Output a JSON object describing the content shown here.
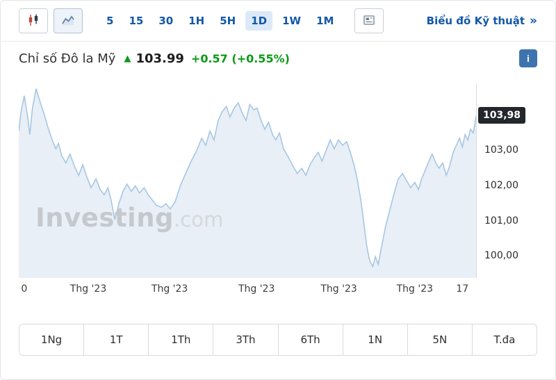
{
  "toolbar": {
    "intervals": [
      "5",
      "15",
      "30",
      "1H",
      "5H",
      "1D",
      "1W",
      "1M"
    ],
    "active_interval": "1D",
    "tech_link": {
      "label": "Biểu đồ Kỹ thuật",
      "chevron": "»"
    }
  },
  "header": {
    "title": "Chỉ số Đô la Mỹ",
    "up_arrow": "▲",
    "price": "103.99",
    "change": "+0.57",
    "change_pct": "(+0.55%)",
    "info_label": "i"
  },
  "watermark": {
    "main": "Investing",
    "suffix": ".com"
  },
  "ranges": [
    "1Ng",
    "1T",
    "1Th",
    "3Th",
    "6Th",
    "1N",
    "5N",
    "T.đa"
  ],
  "chart_data": {
    "type": "area",
    "title": "Chỉ số Đô la Mỹ (US Dollar Index), khung 1D",
    "ylim": [
      99.4,
      104.9
    ],
    "line_color": "#a6c6e3",
    "fill_color": "#e9eff7",
    "current": {
      "value": 103.98,
      "label": "103,98"
    },
    "y_ticks": [
      {
        "value": 103.0,
        "label": "103,00"
      },
      {
        "value": 102.0,
        "label": "102,00"
      },
      {
        "value": 101.0,
        "label": "101,00"
      },
      {
        "value": 100.0,
        "label": "100,00"
      }
    ],
    "x_ticks": [
      {
        "pos": 0.012,
        "label": "0"
      },
      {
        "pos": 0.152,
        "label": "Thg '23"
      },
      {
        "pos": 0.33,
        "label": "Thg '23"
      },
      {
        "pos": 0.52,
        "label": "Thg '23"
      },
      {
        "pos": 0.7,
        "label": "Thg '23"
      },
      {
        "pos": 0.866,
        "label": "Thg '23"
      },
      {
        "pos": 0.97,
        "label": "17"
      }
    ],
    "points": [
      [
        0.0,
        103.55
      ],
      [
        0.005,
        104.1
      ],
      [
        0.012,
        104.55
      ],
      [
        0.02,
        103.9
      ],
      [
        0.024,
        103.45
      ],
      [
        0.03,
        104.2
      ],
      [
        0.038,
        104.75
      ],
      [
        0.046,
        104.4
      ],
      [
        0.055,
        104.05
      ],
      [
        0.064,
        103.65
      ],
      [
        0.073,
        103.3
      ],
      [
        0.081,
        103.05
      ],
      [
        0.087,
        103.2
      ],
      [
        0.094,
        102.85
      ],
      [
        0.103,
        102.65
      ],
      [
        0.112,
        102.9
      ],
      [
        0.122,
        102.55
      ],
      [
        0.131,
        102.3
      ],
      [
        0.14,
        102.6
      ],
      [
        0.149,
        102.25
      ],
      [
        0.158,
        101.95
      ],
      [
        0.169,
        102.2
      ],
      [
        0.178,
        101.9
      ],
      [
        0.187,
        101.75
      ],
      [
        0.195,
        101.95
      ],
      [
        0.202,
        101.6
      ],
      [
        0.21,
        101.05
      ],
      [
        0.219,
        101.5
      ],
      [
        0.228,
        101.85
      ],
      [
        0.237,
        102.05
      ],
      [
        0.246,
        101.85
      ],
      [
        0.255,
        102.0
      ],
      [
        0.264,
        101.8
      ],
      [
        0.274,
        101.95
      ],
      [
        0.283,
        101.75
      ],
      [
        0.292,
        101.6
      ],
      [
        0.301,
        101.45
      ],
      [
        0.312,
        101.4
      ],
      [
        0.322,
        101.5
      ],
      [
        0.331,
        101.35
      ],
      [
        0.342,
        101.55
      ],
      [
        0.353,
        102.0
      ],
      [
        0.365,
        102.35
      ],
      [
        0.377,
        102.7
      ],
      [
        0.389,
        103.0
      ],
      [
        0.4,
        103.35
      ],
      [
        0.409,
        103.15
      ],
      [
        0.418,
        103.55
      ],
      [
        0.427,
        103.3
      ],
      [
        0.436,
        103.85
      ],
      [
        0.445,
        104.1
      ],
      [
        0.454,
        104.25
      ],
      [
        0.462,
        103.95
      ],
      [
        0.471,
        104.2
      ],
      [
        0.48,
        104.35
      ],
      [
        0.489,
        104.05
      ],
      [
        0.497,
        103.85
      ],
      [
        0.505,
        104.3
      ],
      [
        0.514,
        104.15
      ],
      [
        0.521,
        104.2
      ],
      [
        0.53,
        103.85
      ],
      [
        0.538,
        103.6
      ],
      [
        0.546,
        103.8
      ],
      [
        0.555,
        103.45
      ],
      [
        0.562,
        103.3
      ],
      [
        0.57,
        103.5
      ],
      [
        0.579,
        103.05
      ],
      [
        0.59,
        102.8
      ],
      [
        0.6,
        102.55
      ],
      [
        0.609,
        102.35
      ],
      [
        0.619,
        102.5
      ],
      [
        0.628,
        102.3
      ],
      [
        0.637,
        102.6
      ],
      [
        0.646,
        102.8
      ],
      [
        0.655,
        102.95
      ],
      [
        0.663,
        102.7
      ],
      [
        0.672,
        103.0
      ],
      [
        0.681,
        103.3
      ],
      [
        0.69,
        103.05
      ],
      [
        0.699,
        103.3
      ],
      [
        0.708,
        103.15
      ],
      [
        0.717,
        103.25
      ],
      [
        0.725,
        102.95
      ],
      [
        0.733,
        102.6
      ],
      [
        0.74,
        102.2
      ],
      [
        0.748,
        101.6
      ],
      [
        0.755,
        100.9
      ],
      [
        0.761,
        100.3
      ],
      [
        0.767,
        99.9
      ],
      [
        0.774,
        99.72
      ],
      [
        0.78,
        100.0
      ],
      [
        0.786,
        99.78
      ],
      [
        0.793,
        100.25
      ],
      [
        0.802,
        100.85
      ],
      [
        0.812,
        101.35
      ],
      [
        0.821,
        101.8
      ],
      [
        0.83,
        102.2
      ],
      [
        0.839,
        102.35
      ],
      [
        0.848,
        102.15
      ],
      [
        0.857,
        101.95
      ],
      [
        0.866,
        102.1
      ],
      [
        0.874,
        101.9
      ],
      [
        0.881,
        102.2
      ],
      [
        0.889,
        102.45
      ],
      [
        0.897,
        102.7
      ],
      [
        0.904,
        102.9
      ],
      [
        0.912,
        102.65
      ],
      [
        0.919,
        102.5
      ],
      [
        0.927,
        102.65
      ],
      [
        0.935,
        102.3
      ],
      [
        0.942,
        102.55
      ],
      [
        0.95,
        102.95
      ],
      [
        0.957,
        103.15
      ],
      [
        0.964,
        103.35
      ],
      [
        0.97,
        103.1
      ],
      [
        0.976,
        103.45
      ],
      [
        0.982,
        103.3
      ],
      [
        0.988,
        103.6
      ],
      [
        0.994,
        103.5
      ],
      [
        1.0,
        103.98
      ]
    ]
  }
}
